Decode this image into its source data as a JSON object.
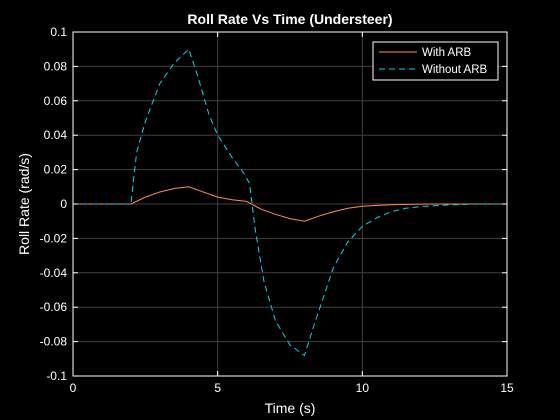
{
  "chart_data": {
    "type": "line",
    "title": "Roll Rate Vs Time (Understeer)",
    "xlabel": "Time (s)",
    "ylabel": "Roll Rate (rad/s)",
    "xlim": [
      0,
      15
    ],
    "ylim": [
      -0.1,
      0.1
    ],
    "xticks": [
      0,
      5,
      10,
      15
    ],
    "yticks": [
      -0.1,
      -0.08,
      -0.06,
      -0.04,
      -0.02,
      0,
      0.02,
      0.04,
      0.06,
      0.08,
      0.1
    ],
    "grid": true,
    "legend_position": "top-right",
    "series": [
      {
        "name": "With ARB",
        "color": "#ff8c50",
        "style": "solid",
        "x": [
          0,
          2,
          2.5,
          3,
          3.5,
          4,
          4.5,
          5,
          5.5,
          6,
          6.5,
          7,
          7.5,
          8,
          8.5,
          9,
          9.5,
          10,
          11,
          12,
          13,
          14,
          15
        ],
        "y": [
          0,
          0,
          0.004,
          0.007,
          0.009,
          0.01,
          0.007,
          0.004,
          0.0025,
          0.0015,
          -0.003,
          -0.006,
          -0.0085,
          -0.01,
          -0.007,
          -0.0045,
          -0.0025,
          -0.0013,
          -0.0004,
          -0.0001,
          0,
          0,
          0
        ]
      },
      {
        "name": "Without ARB",
        "color": "#00d8e8",
        "style": "dashed",
        "x": [
          0,
          2,
          2.2,
          2.5,
          3,
          3.5,
          4,
          4.3,
          4.7,
          5,
          5.5,
          5.9,
          6.1,
          6.3,
          6.6,
          7,
          7.5,
          8,
          8.3,
          8.7,
          9,
          9.5,
          10,
          10.5,
          11,
          11.5,
          12,
          13,
          14,
          15
        ],
        "y": [
          0,
          0,
          0.03,
          0.048,
          0.07,
          0.082,
          0.09,
          0.075,
          0.052,
          0.04,
          0.027,
          0.018,
          0.012,
          -0.015,
          -0.045,
          -0.068,
          -0.082,
          -0.088,
          -0.072,
          -0.052,
          -0.037,
          -0.022,
          -0.013,
          -0.008,
          -0.0045,
          -0.0025,
          -0.0015,
          -0.0005,
          0,
          0
        ]
      }
    ]
  }
}
